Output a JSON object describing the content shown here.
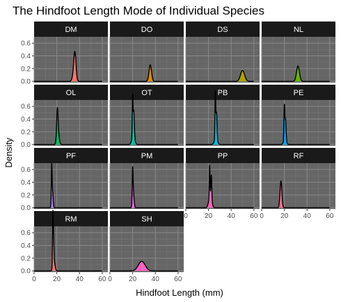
{
  "chart_data": {
    "type": "area",
    "title": "The Hindfoot Length Mode of Individual Species",
    "xlabel": "Hindfoot Length (mm)",
    "ylabel": "Density",
    "xlim": [
      0,
      65
    ],
    "ylim": [
      -0.02,
      0.7
    ],
    "x_ticks": [
      0,
      20,
      40,
      60
    ],
    "y_ticks": [
      0.0,
      0.2,
      0.4,
      0.6
    ],
    "x_tick_labels": [
      "0",
      "20",
      "40",
      "60"
    ],
    "y_tick_labels": [
      "0.0",
      "0.2",
      "0.4",
      "0.6"
    ],
    "grid": true,
    "panel_background": "#666666",
    "strip_background": "#1a1a1a",
    "panels": [
      {
        "species": "DM",
        "color": "#F8766D",
        "peaks": [
          {
            "x": 36,
            "height": 0.3,
            "sd": 0.9
          },
          {
            "x": 35.5,
            "height": 0.18,
            "sd": 1.3
          }
        ]
      },
      {
        "species": "DO",
        "color": "#DB8E00",
        "peaks": [
          {
            "x": 35.5,
            "height": 0.26,
            "sd": 1.1
          }
        ]
      },
      {
        "species": "DS",
        "color": "#AEA200",
        "peaks": [
          {
            "x": 50,
            "height": 0.17,
            "sd": 1.8
          }
        ]
      },
      {
        "species": "NL",
        "color": "#64B200",
        "peaks": [
          {
            "x": 32,
            "height": 0.24,
            "sd": 1.3
          }
        ]
      },
      {
        "species": "OL",
        "color": "#00BD5C",
        "peaks": [
          {
            "x": 20.5,
            "height": 0.4,
            "sd": 0.6
          },
          {
            "x": 21,
            "height": 0.2,
            "sd": 1.0
          }
        ]
      },
      {
        "species": "OT",
        "color": "#00C1A7",
        "peaks": [
          {
            "x": 20,
            "height": 0.6,
            "sd": 0.3
          },
          {
            "x": 21,
            "height": 0.4,
            "sd": 0.5
          },
          {
            "x": 20.5,
            "height": 0.15,
            "sd": 1.2
          }
        ]
      },
      {
        "species": "PB",
        "color": "#00BADE",
        "peaks": [
          {
            "x": 26,
            "height": 0.68,
            "sd": 0.3
          },
          {
            "x": 27,
            "height": 0.4,
            "sd": 0.5
          },
          {
            "x": 26.5,
            "height": 0.12,
            "sd": 1.2
          }
        ]
      },
      {
        "species": "PE",
        "color": "#00A6FF",
        "peaks": [
          {
            "x": 20,
            "height": 0.5,
            "sd": 0.35
          },
          {
            "x": 21,
            "height": 0.3,
            "sd": 0.5
          },
          {
            "x": 20.5,
            "height": 0.1,
            "sd": 1.1
          }
        ]
      },
      {
        "species": "PF",
        "color": "#B385FF",
        "peaks": [
          {
            "x": 15.5,
            "height": 0.48,
            "sd": 0.3
          },
          {
            "x": 16,
            "height": 0.3,
            "sd": 0.6
          }
        ]
      },
      {
        "species": "PM",
        "color": "#EF67EB",
        "peaks": [
          {
            "x": 20,
            "height": 0.45,
            "sd": 0.35
          },
          {
            "x": 20.5,
            "height": 0.25,
            "sd": 0.7
          }
        ]
      },
      {
        "species": "PP",
        "color": "#FF63B6",
        "peaks": [
          {
            "x": 21,
            "height": 0.5,
            "sd": 0.3
          },
          {
            "x": 22.5,
            "height": 0.38,
            "sd": 0.4
          },
          {
            "x": 21.5,
            "height": 0.18,
            "sd": 1.3
          }
        ]
      },
      {
        "species": "RF",
        "color": "#FF6C91",
        "peaks": [
          {
            "x": 17,
            "height": 0.42,
            "sd": 0.8
          }
        ]
      },
      {
        "species": "RM",
        "color": "#F8766D",
        "peaks": [
          {
            "x": 16.5,
            "height": 0.62,
            "sd": 0.3
          },
          {
            "x": 17,
            "height": 0.45,
            "sd": 0.4
          },
          {
            "x": 17.5,
            "height": 0.15,
            "sd": 0.9
          }
        ]
      },
      {
        "species": "SH",
        "color": "#FF61C3",
        "peaks": [
          {
            "x": 28,
            "height": 0.15,
            "sd": 3.0
          }
        ]
      }
    ]
  }
}
